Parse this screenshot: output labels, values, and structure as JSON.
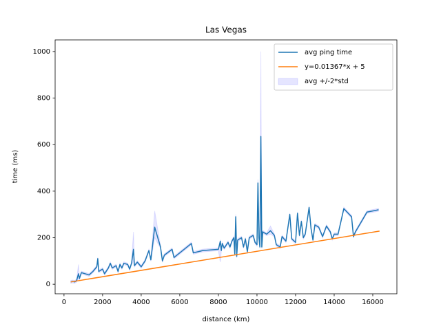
{
  "chart_data": {
    "type": "line",
    "title": "Las Vegas",
    "x_label": "distance (km)",
    "y_label": "time (ms)",
    "xlim": [
      -460,
      17250
    ],
    "ylim": [
      -41,
      1050
    ],
    "xticks": [
      0,
      2000,
      4000,
      6000,
      8000,
      10000,
      12000,
      14000,
      16000
    ],
    "yticks": [
      0,
      200,
      400,
      600,
      800,
      1000
    ],
    "legend": "upper right",
    "x": [
      350,
      450,
      550,
      650,
      750,
      800,
      900,
      1100,
      1300,
      1500,
      1700,
      1750,
      1800,
      2000,
      2100,
      2300,
      2400,
      2500,
      2700,
      2800,
      2900,
      3000,
      3100,
      3300,
      3400,
      3500,
      3600,
      3650,
      3800,
      4000,
      4200,
      4400,
      4500,
      4700,
      5000,
      5100,
      5200,
      5600,
      5700,
      6600,
      6700,
      7200,
      8000,
      8100,
      8150,
      8200,
      8300,
      8500,
      8600,
      8700,
      8800,
      8850,
      8900,
      8950,
      9000,
      9200,
      9300,
      9400,
      9500,
      9600,
      9800,
      9900,
      10000,
      10050,
      10100,
      10150,
      10200,
      10250,
      10300,
      10500,
      10700,
      10900,
      11000,
      11200,
      11300,
      11500,
      11700,
      11800,
      12000,
      12100,
      12200,
      12300,
      12400,
      12500,
      12700,
      12800,
      12900,
      13000,
      13200,
      13400,
      13600,
      13800,
      13900,
      14000,
      14200,
      14500,
      14900,
      15000,
      15100,
      15700,
      16000,
      16300
    ],
    "series": [
      {
        "name": "avg ping time",
        "color": "#1f77b4",
        "values": [
          10,
          12,
          10,
          15,
          45,
          25,
          50,
          45,
          40,
          55,
          75,
          110,
          55,
          65,
          45,
          70,
          90,
          70,
          80,
          55,
          85,
          70,
          90,
          85,
          65,
          90,
          150,
          80,
          95,
          75,
          100,
          145,
          105,
          245,
          160,
          100,
          125,
          150,
          115,
          175,
          135,
          145,
          150,
          185,
          145,
          175,
          155,
          180,
          160,
          185,
          200,
          130,
          290,
          120,
          190,
          200,
          160,
          195,
          140,
          200,
          210,
          180,
          170,
          435,
          200,
          160,
          635,
          160,
          225,
          215,
          230,
          210,
          170,
          160,
          205,
          185,
          300,
          195,
          180,
          305,
          210,
          270,
          200,
          215,
          330,
          240,
          190,
          255,
          245,
          205,
          250,
          225,
          195,
          215,
          215,
          325,
          290,
          205,
          225,
          310,
          315,
          320
        ]
      },
      {
        "name": "y=0.01367*x + 5",
        "color": "#ff7f0e",
        "x": [
          350,
          16350
        ],
        "values": [
          9.8,
          228.5
        ]
      },
      {
        "name": "avg +/-2*std",
        "color": "#0000ff",
        "lower": [
          4,
          6,
          4,
          9,
          25,
          19,
          44,
          39,
          34,
          49,
          69,
          105,
          49,
          59,
          39,
          64,
          84,
          64,
          74,
          49,
          79,
          64,
          84,
          79,
          59,
          84,
          100,
          74,
          89,
          69,
          94,
          139,
          99,
          200,
          154,
          94,
          119,
          144,
          109,
          169,
          129,
          139,
          144,
          95,
          139,
          169,
          149,
          174,
          154,
          179,
          194,
          124,
          280,
          114,
          184,
          194,
          154,
          189,
          134,
          194,
          204,
          174,
          164,
          420,
          194,
          154,
          270,
          154,
          219,
          209,
          215,
          204,
          164,
          154,
          199,
          179,
          294,
          189,
          174,
          299,
          204,
          264,
          194,
          209,
          324,
          234,
          184,
          249,
          239,
          199,
          244,
          219,
          189,
          209,
          209,
          319,
          284,
          199,
          219,
          304,
          309,
          314
        ],
        "upper": [
          16,
          18,
          16,
          21,
          85,
          31,
          56,
          51,
          46,
          61,
          81,
          115,
          61,
          71,
          51,
          76,
          96,
          76,
          86,
          61,
          91,
          76,
          96,
          91,
          71,
          96,
          225,
          86,
          101,
          81,
          106,
          151,
          111,
          315,
          166,
          106,
          131,
          156,
          121,
          181,
          141,
          151,
          156,
          191,
          151,
          181,
          161,
          186,
          166,
          191,
          206,
          136,
          300,
          126,
          196,
          206,
          166,
          201,
          146,
          206,
          216,
          186,
          176,
          450,
          206,
          166,
          1000,
          166,
          231,
          221,
          250,
          216,
          176,
          166,
          211,
          191,
          306,
          201,
          186,
          311,
          216,
          276,
          206,
          221,
          336,
          246,
          196,
          261,
          251,
          211,
          256,
          231,
          201,
          221,
          221,
          331,
          296,
          211,
          231,
          316,
          321,
          326
        ]
      }
    ]
  }
}
